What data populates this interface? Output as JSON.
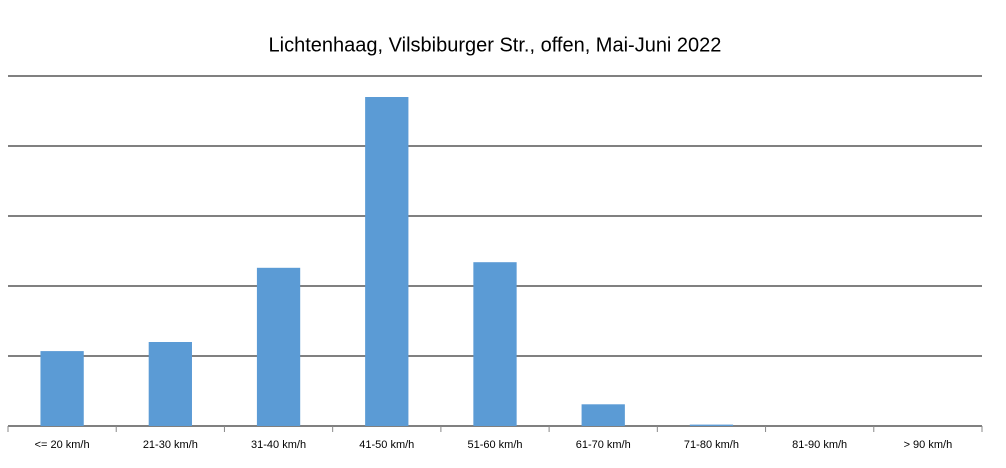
{
  "chart_data": {
    "type": "bar",
    "title": "Lichtenhaag, Vilsbiburger Str., offen, Mai-Juni 2022",
    "categories": [
      "<= 20 km/h",
      "21-30 km/h",
      "31-40 km/h",
      "41-50 km/h",
      "51-60 km/h",
      "61-70 km/h",
      "71-80 km/h",
      "81-90 km/h",
      "> 90 km/h"
    ],
    "values": [
      1.07,
      1.2,
      2.26,
      4.7,
      2.34,
      0.31,
      0.02,
      0,
      0
    ],
    "color": "#5b9bd5",
    "ylim": [
      0,
      5
    ],
    "yticks": [
      0,
      1,
      2,
      3,
      4,
      5
    ],
    "grid": true
  }
}
